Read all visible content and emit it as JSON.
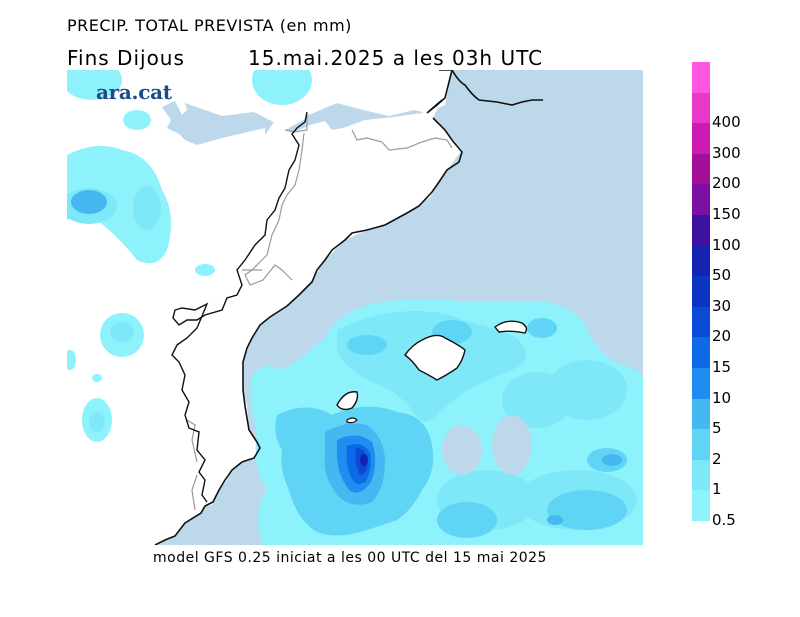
{
  "header": {
    "title": "PRECIP. TOTAL PREVISTA (en mm)",
    "period": "Fins Dijous",
    "valid_time": "15.mai.2025 a les 03h UTC"
  },
  "brand": {
    "name": "ara.cat"
  },
  "footer": {
    "model_info": "model GFS 0.25 iniciat a les 00 UTC del 15 mai 2025"
  },
  "legend": {
    "unit": "mm",
    "levels": [
      {
        "label": "0.5",
        "color": "#8ef2fc"
      },
      {
        "label": "1",
        "color": "#7ee8f8"
      },
      {
        "label": "2",
        "color": "#5fd4f5"
      },
      {
        "label": "5",
        "color": "#45b8f2"
      },
      {
        "label": "10",
        "color": "#1f8cf0"
      },
      {
        "label": "15",
        "color": "#0d69e6"
      },
      {
        "label": "20",
        "color": "#0a4ad6"
      },
      {
        "label": "30",
        "color": "#0b35c2"
      },
      {
        "label": "50",
        "color": "#1622b0"
      },
      {
        "label": "100",
        "color": "#3d12a0"
      },
      {
        "label": "150",
        "color": "#7b10a2"
      },
      {
        "label": "200",
        "color": "#a50f97"
      },
      {
        "label": "300",
        "color": "#cc1ab2"
      },
      {
        "label": "400",
        "color": "#e838c8"
      },
      {
        "label": "",
        "color": "#ff55e0"
      }
    ]
  },
  "map": {
    "sea_color": "#bcd8ea",
    "land_color": "#ffffff",
    "border_color": "#9a9a9a",
    "coast_color": "#111111"
  }
}
